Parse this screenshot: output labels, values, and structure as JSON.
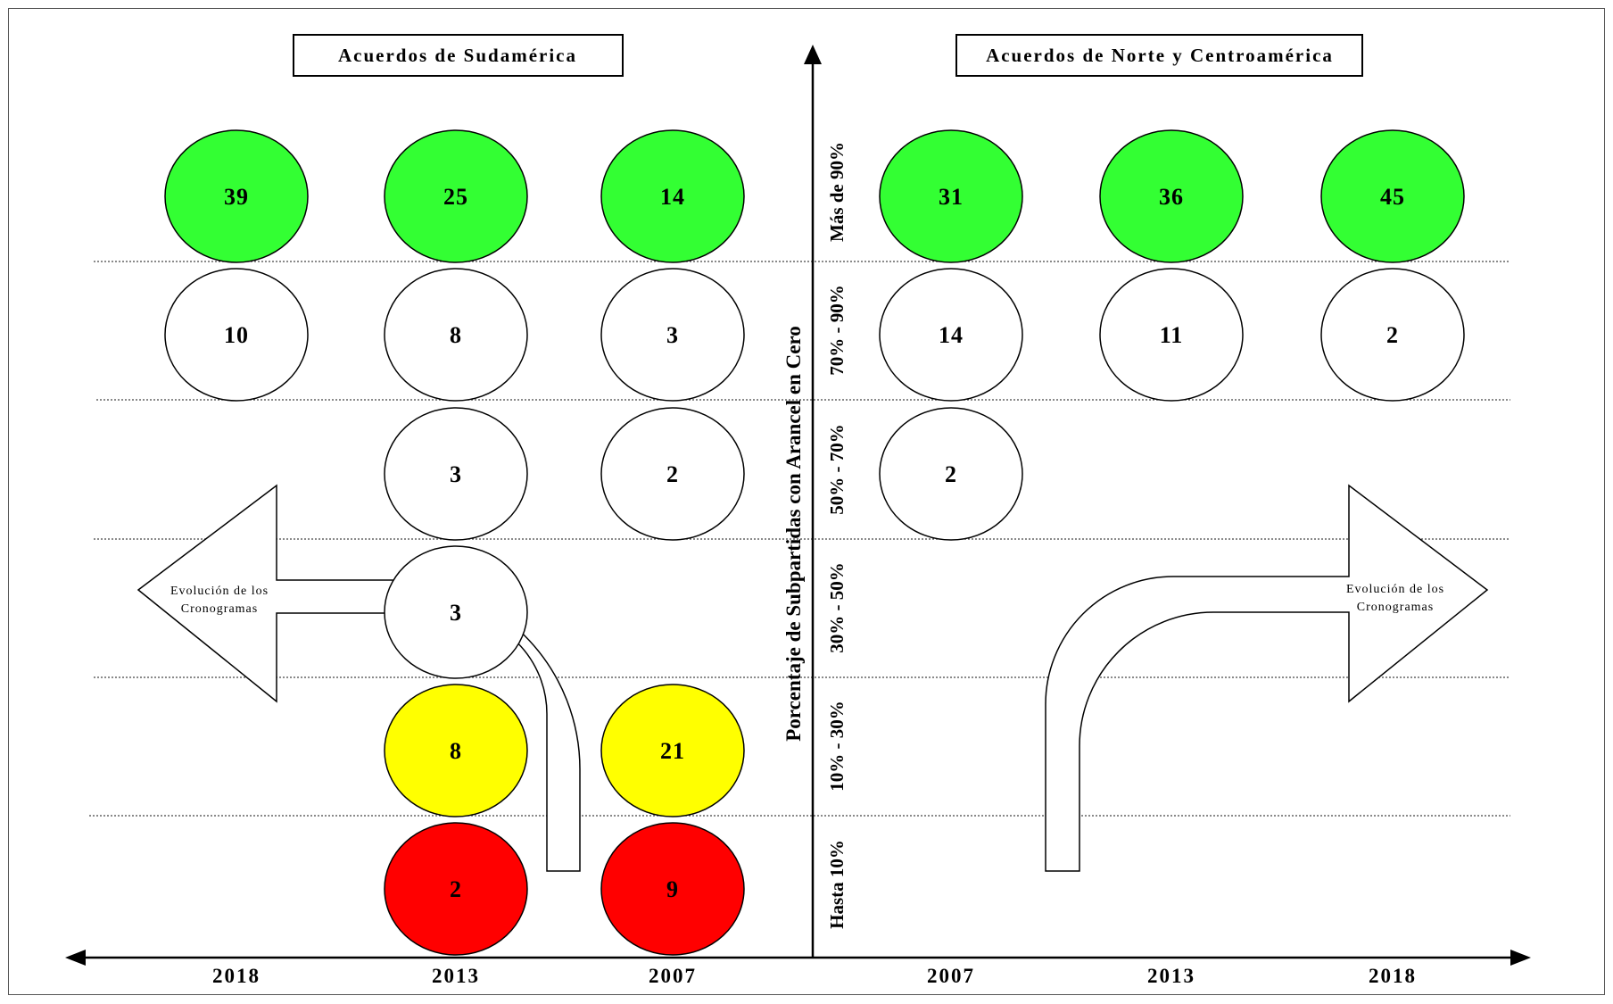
{
  "headers": {
    "left": "Acuerdos de Sudamérica",
    "right": "Acuerdos de Norte y Centroamérica"
  },
  "axis_title": "Porcentaje de Subpartidas con Arancel en Cero",
  "band_labels": [
    "Más de 90%",
    "70% - 90%",
    "50% - 70%",
    "30% - 50%",
    "10% - 30%",
    "Hasta 10%"
  ],
  "years": [
    "2018",
    "2013",
    "2007",
    "2007",
    "2013",
    "2018"
  ],
  "arrow_labels": {
    "left_line1": "Evolución de los",
    "left_line2": "Cronogramas",
    "right_line1": "Evolución de los",
    "right_line2": "Cronogramas"
  },
  "colors": {
    "green": "#33ff33",
    "white": "#ffffff",
    "yellow": "#ffff00",
    "red": "#ff0000"
  },
  "bubbles": [
    {
      "side": "Sudamérica",
      "year": "2018",
      "band": "Más de 90%",
      "value": "39",
      "color": "green"
    },
    {
      "side": "Sudamérica",
      "year": "2013",
      "band": "Más de 90%",
      "value": "25",
      "color": "green"
    },
    {
      "side": "Sudamérica",
      "year": "2007",
      "band": "Más de 90%",
      "value": "14",
      "color": "green"
    },
    {
      "side": "Norte y Centroamérica",
      "year": "2007",
      "band": "Más de 90%",
      "value": "31",
      "color": "green"
    },
    {
      "side": "Norte y Centroamérica",
      "year": "2013",
      "band": "Más de 90%",
      "value": "36",
      "color": "green"
    },
    {
      "side": "Norte y Centroamérica",
      "year": "2018",
      "band": "Más de 90%",
      "value": "45",
      "color": "green"
    },
    {
      "side": "Sudamérica",
      "year": "2018",
      "band": "70% - 90%",
      "value": "10",
      "color": "white"
    },
    {
      "side": "Sudamérica",
      "year": "2013",
      "band": "70% - 90%",
      "value": "8",
      "color": "white"
    },
    {
      "side": "Sudamérica",
      "year": "2007",
      "band": "70% - 90%",
      "value": "3",
      "color": "white"
    },
    {
      "side": "Norte y Centroamérica",
      "year": "2007",
      "band": "70% - 90%",
      "value": "14",
      "color": "white"
    },
    {
      "side": "Norte y Centroamérica",
      "year": "2013",
      "band": "70% - 90%",
      "value": "11",
      "color": "white"
    },
    {
      "side": "Norte y Centroamérica",
      "year": "2018",
      "band": "70% - 90%",
      "value": "2",
      "color": "white"
    },
    {
      "side": "Sudamérica",
      "year": "2013",
      "band": "50% - 70%",
      "value": "3",
      "color": "white"
    },
    {
      "side": "Sudamérica",
      "year": "2007",
      "band": "50% - 70%",
      "value": "2",
      "color": "white"
    },
    {
      "side": "Norte y Centroamérica",
      "year": "2007",
      "band": "50% - 70%",
      "value": "2",
      "color": "white"
    },
    {
      "side": "Sudamérica",
      "year": "2013",
      "band": "30% - 50%",
      "value": "3",
      "color": "white"
    },
    {
      "side": "Sudamérica",
      "year": "2013",
      "band": "10% - 30%",
      "value": "8",
      "color": "yellow"
    },
    {
      "side": "Sudamérica",
      "year": "2007",
      "band": "10% - 30%",
      "value": "21",
      "color": "yellow"
    },
    {
      "side": "Sudamérica",
      "year": "2013",
      "band": "Hasta 10%",
      "value": "2",
      "color": "red"
    },
    {
      "side": "Sudamérica",
      "year": "2007",
      "band": "Hasta 10%",
      "value": "9",
      "color": "red"
    }
  ]
}
